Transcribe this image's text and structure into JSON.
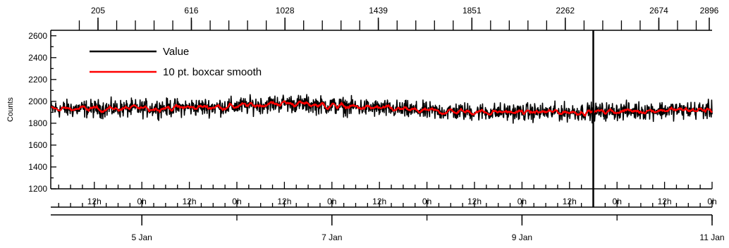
{
  "chart_data": {
    "type": "line",
    "ylabel": "Counts",
    "ylim": [
      1200,
      2650
    ],
    "yticks": [
      1200,
      1400,
      1600,
      1800,
      2000,
      2200,
      2400,
      2600
    ],
    "top_axis": {
      "ticks": [
        205,
        616,
        1028,
        1439,
        1851,
        2262,
        2674,
        2896
      ],
      "labels": [
        "205",
        "616",
        "1028",
        "1439",
        "1851",
        "2262",
        "2674",
        "2896"
      ]
    },
    "time_axis": {
      "start": "2019-01-04T01:00",
      "end": "2019-01-11T00:00",
      "hour_labels": [
        "12h",
        "0h",
        "12h",
        "0h",
        "12h",
        "0h",
        "12h",
        "0h",
        "12h",
        "0h",
        "12h",
        "0h",
        "12h",
        "0h"
      ],
      "day_labels": [
        {
          "date": "2019-01-05T00:00",
          "label": "5 Jan"
        },
        {
          "date": "2019-01-07T00:00",
          "label": "7 Jan"
        },
        {
          "date": "2019-01-09T00:00",
          "label": "9 Jan"
        },
        {
          "date": "2019-01-11T00:00",
          "label": "11 Jan"
        }
      ]
    },
    "cursor": {
      "date": "2019-01-09T18:00"
    },
    "legend": {
      "placement": "top-left"
    },
    "series": [
      {
        "name": "Value",
        "color": "#000000",
        "mean_profile": [
          {
            "t": "2019-01-04T01:00",
            "y": 1930
          },
          {
            "t": "2019-01-05T00:00",
            "y": 1935
          },
          {
            "t": "2019-01-06T00:00",
            "y": 1955
          },
          {
            "t": "2019-01-06T12:00",
            "y": 1985
          },
          {
            "t": "2019-01-07T00:00",
            "y": 1960
          },
          {
            "t": "2019-01-08T00:00",
            "y": 1910
          },
          {
            "t": "2019-01-09T00:00",
            "y": 1900
          },
          {
            "t": "2019-01-09T18:00",
            "y": 1905
          },
          {
            "t": "2019-01-10T12:00",
            "y": 1920
          },
          {
            "t": "2019-01-11T00:00",
            "y": 1920
          }
        ],
        "spread": 75
      },
      {
        "name": "10 pt. boxcar smooth",
        "color": "#ff0000",
        "mean_profile": [
          {
            "t": "2019-01-04T01:00",
            "y": 1930
          },
          {
            "t": "2019-01-05T00:00",
            "y": 1935
          },
          {
            "t": "2019-01-06T00:00",
            "y": 1955
          },
          {
            "t": "2019-01-06T12:00",
            "y": 1985
          },
          {
            "t": "2019-01-07T00:00",
            "y": 1960
          },
          {
            "t": "2019-01-08T00:00",
            "y": 1910
          },
          {
            "t": "2019-01-09T00:00",
            "y": 1900
          },
          {
            "t": "2019-01-09T18:00",
            "y": 1905
          },
          {
            "t": "2019-01-10T12:00",
            "y": 1920
          },
          {
            "t": "2019-01-11T00:00",
            "y": 1920
          }
        ],
        "spread": 22
      }
    ]
  }
}
